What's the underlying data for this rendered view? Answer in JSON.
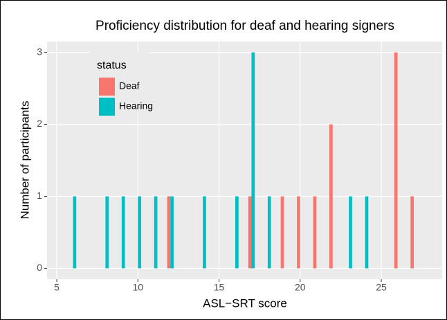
{
  "chart_data": {
    "type": "bar",
    "title": "Proficiency distribution for deaf and hearing signers",
    "x_label": "ASL−SRT score",
    "y_label": "Number of participants",
    "legend_title": "status",
    "legend_position": "top-left",
    "grid": true,
    "xlim": [
      4.4,
      28.75
    ],
    "xticks": [
      5,
      10,
      15,
      20,
      25
    ],
    "ylim": [
      -0.15,
      3.15
    ],
    "yticks": [
      0,
      1,
      2,
      3
    ],
    "series": [
      {
        "name": "Deaf",
        "color": "#F8766D",
        "x": [
          12,
          17,
          19,
          20,
          21,
          22,
          26,
          27
        ],
        "values": [
          1,
          1,
          1,
          1,
          1,
          2,
          3,
          1
        ]
      },
      {
        "name": "Hearing",
        "color": "#00BFC4",
        "x": [
          6,
          8,
          9,
          10,
          11,
          12,
          14,
          16,
          17,
          18,
          23,
          24
        ],
        "values": [
          1,
          1,
          1,
          1,
          1,
          1,
          1,
          1,
          3,
          1,
          1,
          1
        ]
      }
    ]
  }
}
